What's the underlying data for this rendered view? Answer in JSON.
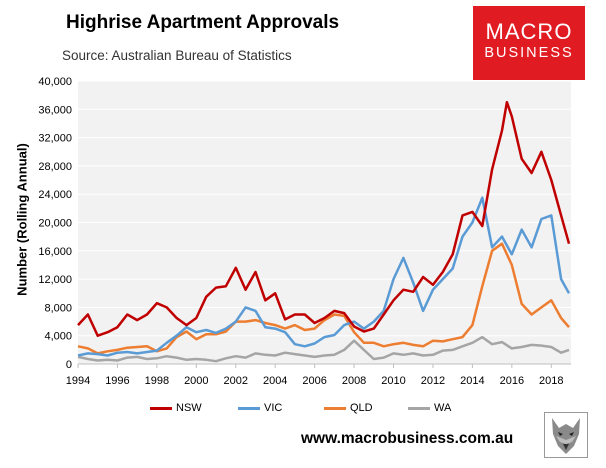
{
  "header": {
    "title": "Highrise Apartment Approvals",
    "source": "Source: Australian Bureau of Statistics"
  },
  "logo": {
    "line1": "MACRO",
    "line2": "BUSINESS"
  },
  "footer": {
    "website": "www.macrobusiness.com.au"
  },
  "colors": {
    "nsw": "#c00000",
    "vic": "#5b9bd5",
    "qld": "#ed7d31",
    "wa": "#a5a5a5",
    "brand": "#e01b22"
  },
  "chart_data": {
    "type": "line",
    "title": "Highrise Apartment Approvals",
    "ylabel": "Number (Rolling Annual)",
    "xlabel": "",
    "xlim": [
      1994,
      2019
    ],
    "ylim": [
      0,
      40000
    ],
    "x_ticks": [
      "1994",
      "1996",
      "1998",
      "2000",
      "2002",
      "2004",
      "2006",
      "2008",
      "2010",
      "2012",
      "2014",
      "2016",
      "2018"
    ],
    "y_ticks": [
      "0",
      "4,000",
      "8,000",
      "12,000",
      "16,000",
      "20,000",
      "24,000",
      "28,000",
      "32,000",
      "36,000",
      "40,000"
    ],
    "legend_position": "bottom",
    "series": [
      {
        "name": "NSW",
        "color": "#c00000",
        "x": [
          1994.0,
          1994.5,
          1995.0,
          1995.5,
          1996.0,
          1996.5,
          1997.0,
          1997.5,
          1998.0,
          1998.5,
          1999.0,
          1999.5,
          2000.0,
          2000.5,
          2001.0,
          2001.5,
          2002.0,
          2002.5,
          2003.0,
          2003.5,
          2004.0,
          2004.5,
          2005.0,
          2005.5,
          2006.0,
          2006.5,
          2007.0,
          2007.5,
          2008.0,
          2008.5,
          2009.0,
          2009.5,
          2010.0,
          2010.5,
          2011.0,
          2011.5,
          2012.0,
          2012.5,
          2013.0,
          2013.5,
          2014.0,
          2014.5,
          2015.0,
          2015.5,
          2015.75,
          2016.0,
          2016.5,
          2017.0,
          2017.5,
          2018.0,
          2018.5,
          2018.9
        ],
        "values": [
          5500,
          7000,
          4000,
          4500,
          5200,
          7000,
          6200,
          7000,
          8600,
          8000,
          6500,
          5500,
          6500,
          9500,
          10800,
          11000,
          13600,
          10500,
          13000,
          9000,
          10000,
          6300,
          7000,
          7000,
          5800,
          6500,
          7500,
          7200,
          5300,
          4600,
          5000,
          7000,
          9000,
          10500,
          10200,
          12300,
          11200,
          13000,
          15500,
          21000,
          21500,
          19500,
          27500,
          33000,
          37000,
          35000,
          29000,
          27000,
          30000,
          26000,
          21000,
          17000
        ]
      },
      {
        "name": "VIC",
        "color": "#5b9bd5",
        "x": [
          1994.0,
          1994.5,
          1995.0,
          1995.5,
          1996.0,
          1996.5,
          1997.0,
          1997.5,
          1998.0,
          1998.5,
          1999.0,
          1999.5,
          2000.0,
          2000.5,
          2001.0,
          2001.5,
          2002.0,
          2002.5,
          2003.0,
          2003.5,
          2004.0,
          2004.5,
          2005.0,
          2005.5,
          2006.0,
          2006.5,
          2007.0,
          2007.5,
          2008.0,
          2008.5,
          2009.0,
          2009.5,
          2010.0,
          2010.5,
          2011.0,
          2011.5,
          2012.0,
          2012.5,
          2013.0,
          2013.5,
          2014.0,
          2014.5,
          2015.0,
          2015.5,
          2016.0,
          2016.5,
          2017.0,
          2017.5,
          2018.0,
          2018.5,
          2018.9
        ],
        "values": [
          1200,
          1500,
          1400,
          1200,
          1600,
          1700,
          1500,
          1700,
          1900,
          3000,
          4000,
          5200,
          4500,
          4800,
          4400,
          5000,
          6000,
          8000,
          7500,
          5200,
          5000,
          4500,
          2800,
          2500,
          2900,
          3800,
          4100,
          5500,
          6000,
          5000,
          6000,
          7500,
          12000,
          15000,
          11500,
          7500,
          10500,
          12000,
          13500,
          18000,
          20000,
          23500,
          16500,
          18000,
          15500,
          19000,
          16500,
          20500,
          21000,
          12000,
          10000
        ]
      },
      {
        "name": "QLD",
        "color": "#ed7d31",
        "x": [
          1994.0,
          1994.5,
          1995.0,
          1995.5,
          1996.0,
          1996.5,
          1997.0,
          1997.5,
          1998.0,
          1998.5,
          1999.0,
          1999.5,
          2000.0,
          2000.5,
          2001.0,
          2001.5,
          2002.0,
          2002.5,
          2003.0,
          2003.5,
          2004.0,
          2004.5,
          2005.0,
          2005.5,
          2006.0,
          2006.5,
          2007.0,
          2007.5,
          2008.0,
          2008.5,
          2009.0,
          2009.5,
          2010.0,
          2010.5,
          2011.0,
          2011.5,
          2012.0,
          2012.5,
          2013.0,
          2013.5,
          2014.0,
          2014.5,
          2015.0,
          2015.5,
          2016.0,
          2016.5,
          2017.0,
          2017.5,
          2018.0,
          2018.5,
          2018.9
        ],
        "values": [
          2500,
          2200,
          1500,
          1800,
          2000,
          2300,
          2400,
          2500,
          1800,
          2200,
          3800,
          4600,
          3500,
          4200,
          4200,
          4600,
          6000,
          6000,
          6200,
          5800,
          5500,
          5000,
          5500,
          4800,
          5000,
          6200,
          7000,
          6800,
          4500,
          3000,
          3000,
          2500,
          2800,
          3000,
          2700,
          2500,
          3300,
          3200,
          3500,
          3800,
          5500,
          11000,
          16000,
          17000,
          14000,
          8500,
          7000,
          8000,
          9000,
          6500,
          5200
        ]
      },
      {
        "name": "WA",
        "color": "#a5a5a5",
        "x": [
          1994.0,
          1994.5,
          1995.0,
          1995.5,
          1996.0,
          1996.5,
          1997.0,
          1997.5,
          1998.0,
          1998.5,
          1999.0,
          1999.5,
          2000.0,
          2000.5,
          2001.0,
          2001.5,
          2002.0,
          2002.5,
          2003.0,
          2003.5,
          2004.0,
          2004.5,
          2005.0,
          2005.5,
          2006.0,
          2006.5,
          2007.0,
          2007.5,
          2008.0,
          2008.5,
          2009.0,
          2009.5,
          2010.0,
          2010.5,
          2011.0,
          2011.5,
          2012.0,
          2012.5,
          2013.0,
          2013.5,
          2014.0,
          2014.5,
          2015.0,
          2015.5,
          2016.0,
          2016.5,
          2017.0,
          2017.5,
          2018.0,
          2018.5,
          2018.9
        ],
        "values": [
          1000,
          700,
          500,
          600,
          500,
          900,
          1000,
          700,
          800,
          1100,
          900,
          600,
          700,
          600,
          400,
          800,
          1100,
          900,
          1500,
          1300,
          1200,
          1600,
          1400,
          1200,
          1000,
          1200,
          1300,
          2000,
          3300,
          2000,
          700,
          900,
          1500,
          1300,
          1500,
          1200,
          1300,
          1900,
          2000,
          2500,
          3000,
          3800,
          2800,
          3100,
          2200,
          2400,
          2700,
          2600,
          2400,
          1600,
          2000
        ]
      }
    ]
  }
}
